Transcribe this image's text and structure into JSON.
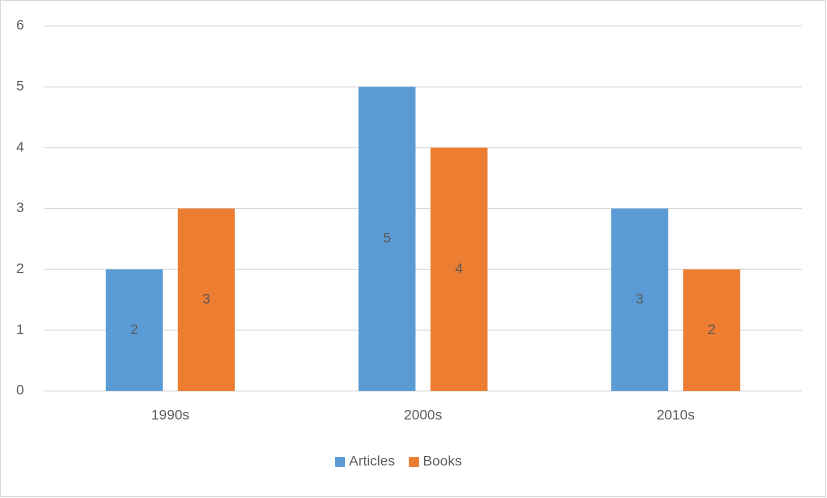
{
  "chart_data": {
    "type": "bar",
    "categories": [
      "1990s",
      "2000s",
      "2010s"
    ],
    "series": [
      {
        "name": "Articles",
        "color": "#5b9bd5",
        "values": [
          2,
          5,
          3
        ]
      },
      {
        "name": "Books",
        "color": "#ed7d31",
        "values": [
          3,
          4,
          2
        ]
      }
    ],
    "ylim": [
      0,
      6
    ],
    "yticks": [
      0,
      1,
      2,
      3,
      4,
      5,
      6
    ],
    "grid": true,
    "legend": "bottom"
  }
}
